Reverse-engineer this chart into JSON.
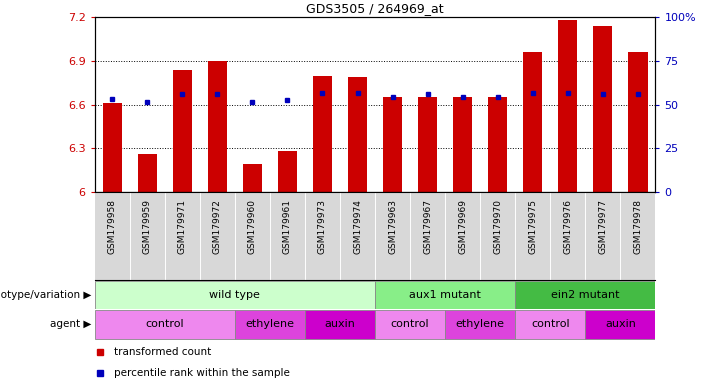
{
  "title": "GDS3505 / 264969_at",
  "samples": [
    "GSM179958",
    "GSM179959",
    "GSM179971",
    "GSM179972",
    "GSM179960",
    "GSM179961",
    "GSM179973",
    "GSM179974",
    "GSM179963",
    "GSM179967",
    "GSM179969",
    "GSM179970",
    "GSM179975",
    "GSM179976",
    "GSM179977",
    "GSM179978"
  ],
  "red_values": [
    6.61,
    6.26,
    6.84,
    6.9,
    6.19,
    6.28,
    6.8,
    6.79,
    6.65,
    6.65,
    6.65,
    6.65,
    6.96,
    7.18,
    7.14,
    6.96
  ],
  "blue_values": [
    6.64,
    6.62,
    6.67,
    6.67,
    6.62,
    6.63,
    6.68,
    6.68,
    6.65,
    6.67,
    6.65,
    6.65,
    6.68,
    6.68,
    6.67,
    6.67
  ],
  "ylim_left": [
    6.0,
    7.2
  ],
  "ylim_right": [
    0,
    100
  ],
  "yticks_left": [
    6.0,
    6.3,
    6.6,
    6.9,
    7.2
  ],
  "yticks_right": [
    0,
    25,
    50,
    75,
    100
  ],
  "ytick_labels_left": [
    "6",
    "6.3",
    "6.6",
    "6.9",
    "7.2"
  ],
  "ytick_labels_right": [
    "0",
    "25",
    "50",
    "75",
    "100%"
  ],
  "hlines": [
    6.3,
    6.6,
    6.9
  ],
  "bar_color": "#cc0000",
  "dot_color": "#0000bb",
  "bar_bottom": 6.0,
  "genotype_groups": [
    {
      "label": "wild type",
      "start": 0,
      "end": 8,
      "color": "#ccffcc"
    },
    {
      "label": "aux1 mutant",
      "start": 8,
      "end": 12,
      "color": "#88ee88"
    },
    {
      "label": "ein2 mutant",
      "start": 12,
      "end": 16,
      "color": "#44bb44"
    }
  ],
  "agent_groups": [
    {
      "label": "control",
      "start": 0,
      "end": 4,
      "color": "#ee88ee"
    },
    {
      "label": "ethylene",
      "start": 4,
      "end": 6,
      "color": "#dd44dd"
    },
    {
      "label": "auxin",
      "start": 6,
      "end": 8,
      "color": "#cc00cc"
    },
    {
      "label": "control",
      "start": 8,
      "end": 10,
      "color": "#ee88ee"
    },
    {
      "label": "ethylene",
      "start": 10,
      "end": 12,
      "color": "#dd44dd"
    },
    {
      "label": "control",
      "start": 12,
      "end": 14,
      "color": "#ee88ee"
    },
    {
      "label": "auxin",
      "start": 14,
      "end": 16,
      "color": "#cc00cc"
    }
  ],
  "legend_items": [
    {
      "label": "transformed count",
      "color": "#cc0000",
      "marker": "s"
    },
    {
      "label": "percentile rank within the sample",
      "color": "#0000bb",
      "marker": "s"
    }
  ],
  "genotype_label": "genotype/variation",
  "agent_label": "agent",
  "tick_label_fontsize": 6.5
}
